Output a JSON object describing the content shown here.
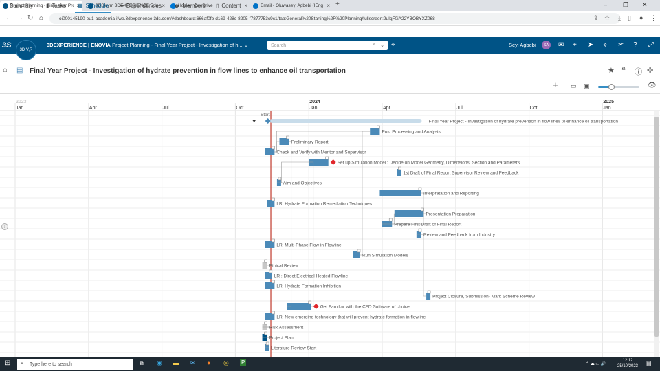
{
  "browser": {
    "tabs": [
      {
        "label": "Project Planning - Final Year Pro",
        "active": true,
        "color": "#005386"
      },
      {
        "label": "3DSwym 3DEXPERIENCE Edu |3",
        "active": false,
        "color": "#005386"
      },
      {
        "label": "Home - OneDrive",
        "active": false,
        "color": "#0078d4"
      },
      {
        "label": "Email - Oluwaseyi Agbebi (IEng",
        "active": false,
        "color": "#0072c6"
      }
    ],
    "url": "oi000145190-eu1-academia-ifwe.3dexperience.3ds.com/#dashboard:666af0fb-d169-428c-8205-f7877753c9c1/tab:General%20Starting%2F%20Planning/fullscreen:9uIqF0iA22YBOBYXZ068"
  },
  "app": {
    "brand": "3DEXPERIENCE | ENOVIA",
    "title": "Project Planning - Final Year Project - Investigation of h...",
    "search_placeholder": "Search",
    "user": "Seyi Agbebi",
    "user_initials": "SA",
    "compass_label": "3D V,R"
  },
  "project": {
    "title": "Final Year Project - Investigation of hydrate prevention in flow lines to enhance oil transportation"
  },
  "nav_tabs": [
    {
      "label": "Summary",
      "icon": "chart-icon",
      "active": false
    },
    {
      "label": "Tasks",
      "icon": "clipboard-icon",
      "active": false
    },
    {
      "label": "Schedule",
      "icon": "calendar-icon",
      "active": true
    },
    {
      "label": "Dependencies",
      "icon": "link-icon",
      "active": false
    },
    {
      "label": "Members",
      "icon": "people-icon",
      "active": false
    },
    {
      "label": "Content",
      "icon": "document-icon",
      "active": false
    }
  ],
  "timeline": {
    "years": [
      {
        "label": "2023",
        "month_index": 0
      },
      {
        "label": "2024",
        "month_index": 12
      },
      {
        "label": "2025",
        "month_index": 24
      }
    ],
    "months": [
      "Jan",
      "Apr",
      "Jul",
      "Oct",
      "Jan",
      "Apr",
      "Jul",
      "Oct",
      "Jan"
    ],
    "today_label": "Start"
  },
  "tasks": [
    {
      "name": "Final Year Project - Investigation of hydrate prevention in flow lines to enhance oil transportation",
      "start": 10.3,
      "end": 16.5,
      "type": "summary"
    },
    {
      "name": "Post Processing and Analysis",
      "start": 14.5,
      "end": 14.9,
      "type": "task"
    },
    {
      "name": "Preliminary Report",
      "start": 10.8,
      "end": 11.2,
      "type": "task"
    },
    {
      "name": "Check and Verify with Mentor and Supervisor",
      "start": 10.2,
      "end": 10.6,
      "type": "task"
    },
    {
      "name": "Set up Simulation Model : Decide on Model Geometry, Dimensions, Section and Parameters",
      "start": 12.0,
      "end": 12.8,
      "type": "critical"
    },
    {
      "name": "1st Draft of Final Report Supervisor Review and Feedback",
      "start": 15.6,
      "end": 15.7,
      "type": "task"
    },
    {
      "name": "Aim and Objectives",
      "start": 10.7,
      "end": 10.8,
      "type": "task"
    },
    {
      "name": "Interpretation and Reporting",
      "start": 14.9,
      "end": 16.6,
      "type": "task"
    },
    {
      "name": "LR: Hydrate Formation Remediation Techniques",
      "start": 10.3,
      "end": 10.6,
      "type": "task"
    },
    {
      "name": "Presentation Preparation",
      "start": 15.5,
      "end": 16.7,
      "type": "task"
    },
    {
      "name": "Prepare First Draft of Final Report",
      "start": 15.0,
      "end": 15.4,
      "type": "task"
    },
    {
      "name": "Review and Feedback from Industry",
      "start": 16.4,
      "end": 16.6,
      "type": "task"
    },
    {
      "name": "LR: Multi-Phase Flow in Flowline",
      "start": 10.2,
      "end": 10.6,
      "type": "task"
    },
    {
      "name": "Run Simulation Models",
      "start": 13.8,
      "end": 14.1,
      "type": "task"
    },
    {
      "name": "Ethical Review",
      "start": 10.1,
      "end": 10.3,
      "type": "grey"
    },
    {
      "name": "LR : Direct Electrical Heated Flowline",
      "start": 10.2,
      "end": 10.5,
      "type": "task"
    },
    {
      "name": "LR: Hydrate Formation Inhibition",
      "start": 10.2,
      "end": 10.6,
      "type": "task"
    },
    {
      "name": "Project Closure, Submission- Mark Scheme Review",
      "start": 16.8,
      "end": 16.9,
      "type": "task"
    },
    {
      "name": "Get Familiar with the CFD Software of choice",
      "start": 11.1,
      "end": 12.1,
      "type": "critical"
    },
    {
      "name": "LR: New emerging technology that will prevent hydrate formation in flowline",
      "start": 10.2,
      "end": 10.6,
      "type": "task"
    },
    {
      "name": "Risk Assessment",
      "start": 10.1,
      "end": 10.3,
      "type": "grey"
    },
    {
      "name": "Project Plan",
      "start": 10.1,
      "end": 10.3,
      "type": "dark"
    },
    {
      "name": "Literature Review Start",
      "start": 10.2,
      "end": 10.3,
      "type": "task"
    }
  ],
  "colors": {
    "bar": "#4b8ab8",
    "critical": "#e0262b",
    "today": "#c0392b",
    "summary": "#c8dcea",
    "brand": "#005386"
  },
  "taskbar": {
    "search_placeholder": "Type here to search",
    "time": "12:12",
    "date": "25/10/2023"
  }
}
